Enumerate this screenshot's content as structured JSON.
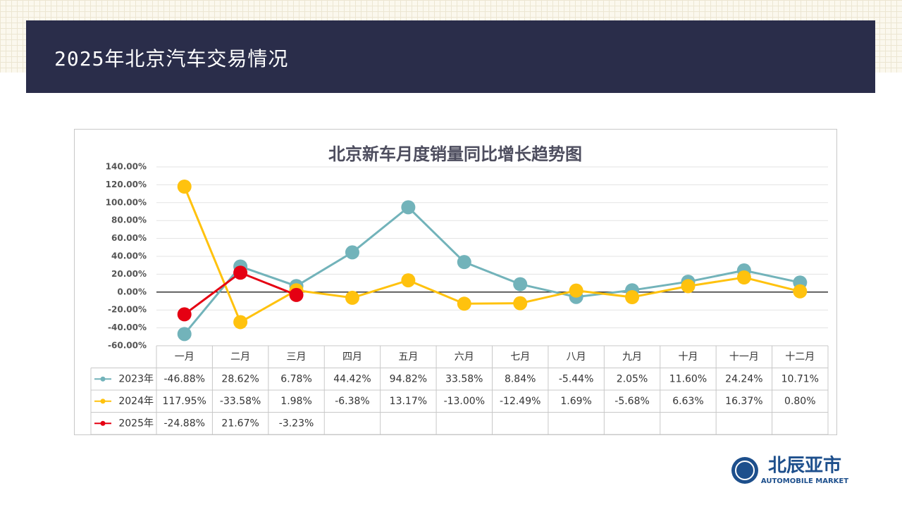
{
  "header": {
    "title": "2025年北京汽车交易情况"
  },
  "chart_data": {
    "type": "line",
    "title": "北京新车月度销量同比增长趋势图",
    "categories": [
      "一月",
      "二月",
      "三月",
      "四月",
      "五月",
      "六月",
      "七月",
      "八月",
      "九月",
      "十月",
      "十一月",
      "十二月"
    ],
    "series": [
      {
        "name": "2023年",
        "color": "#72b3ba",
        "values": [
          -46.88,
          28.62,
          6.78,
          44.42,
          94.82,
          33.58,
          8.84,
          -5.44,
          2.05,
          11.6,
          24.24,
          10.71
        ],
        "value_labels": [
          "-46.88%",
          "28.62%",
          "6.78%",
          "44.42%",
          "94.82%",
          "33.58%",
          "8.84%",
          "-5.44%",
          "2.05%",
          "11.60%",
          "24.24%",
          "10.71%"
        ]
      },
      {
        "name": "2024年",
        "color": "#ffc20e",
        "values": [
          117.95,
          -33.58,
          1.98,
          -6.38,
          13.17,
          -13.0,
          -12.49,
          1.69,
          -5.68,
          6.63,
          16.37,
          0.8
        ],
        "value_labels": [
          "117.95%",
          "-33.58%",
          "1.98%",
          "-6.38%",
          "13.17%",
          "-13.00%",
          "-12.49%",
          "1.69%",
          "-5.68%",
          "6.63%",
          "16.37%",
          "0.80%"
        ]
      },
      {
        "name": "2025年",
        "color": "#e50012",
        "values": [
          -24.88,
          21.67,
          -3.23,
          null,
          null,
          null,
          null,
          null,
          null,
          null,
          null,
          null
        ],
        "value_labels": [
          "-24.88%",
          "21.67%",
          "-3.23%",
          null,
          null,
          null,
          null,
          null,
          null,
          null,
          null,
          null
        ]
      }
    ],
    "ylim": [
      -60,
      140
    ],
    "yticks": [
      {
        "value": -60,
        "label": "-60.00%"
      },
      {
        "value": -40,
        "label": "-40.00%"
      },
      {
        "value": -20,
        "label": "-20.00%"
      },
      {
        "value": 0,
        "label": "0.00%"
      },
      {
        "value": 20,
        "label": "20.00%"
      },
      {
        "value": 40,
        "label": "40.00%"
      },
      {
        "value": 60,
        "label": "60.00%"
      },
      {
        "value": 80,
        "label": "80.00%"
      },
      {
        "value": 100,
        "label": "100.00%"
      },
      {
        "value": 120,
        "label": "120.00%"
      },
      {
        "value": 140,
        "label": "140.00%"
      }
    ],
    "grid": true
  },
  "logo": {
    "name": "北辰亚市",
    "subtitle": "AUTOMOBILE MARKET"
  }
}
